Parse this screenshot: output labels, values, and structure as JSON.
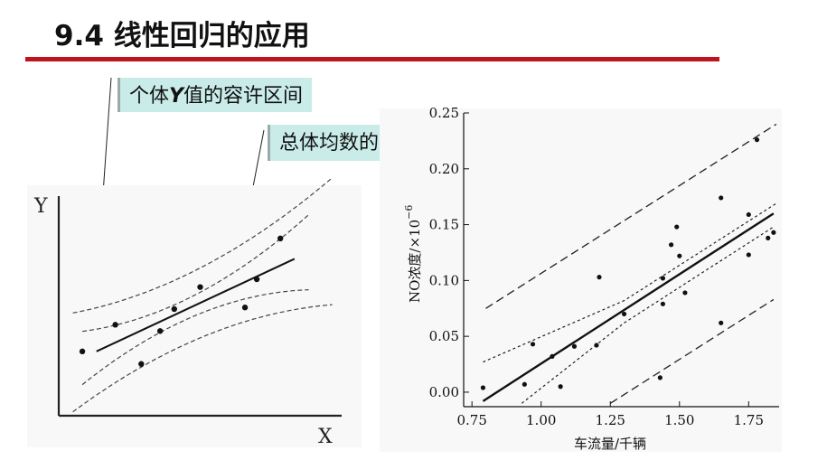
{
  "slide": {
    "title": "9.4 线性回归的应用"
  },
  "callouts": {
    "tolerance": {
      "prefix": "个体",
      "variable": "Y",
      "suffix": "值的容许区间"
    },
    "confidence": {
      "text": "总体均数的置信区间"
    }
  },
  "chart_data": [
    {
      "type": "scatter",
      "title": "",
      "xlabel": "X",
      "ylabel": "Y",
      "schematic": true,
      "points": [
        {
          "x": 0.5,
          "y": 2.05
        },
        {
          "x": 1.2,
          "y": 2.9
        },
        {
          "x": 1.75,
          "y": 1.65
        },
        {
          "x": 2.15,
          "y": 2.7
        },
        {
          "x": 2.45,
          "y": 3.4
        },
        {
          "x": 3.0,
          "y": 4.1
        },
        {
          "x": 3.95,
          "y": 3.45
        },
        {
          "x": 4.2,
          "y": 4.35
        },
        {
          "x": 4.7,
          "y": 5.65
        }
      ],
      "regression_line": {
        "x": [
          0.8,
          5.0
        ],
        "y": [
          2.05,
          5.0
        ]
      },
      "confidence_band_label": "总体均数的置信区间",
      "tolerance_band_label": "个体Y值的容许区间",
      "xlim": [
        0,
        6
      ],
      "ylim": [
        0,
        7
      ]
    },
    {
      "type": "scatter",
      "title": "",
      "xlabel": "车流量/千辆",
      "ylabel": "NO浓度/×10",
      "ylabel_exponent": "−6",
      "xlim": [
        0.72,
        1.86
      ],
      "ylim": [
        -0.013,
        0.25
      ],
      "xticks": [
        "0.75",
        "1.00",
        "1.25",
        "1.50",
        "1.75"
      ],
      "yticks": [
        "0.00",
        "0.05",
        "0.10",
        "0.15",
        "0.20",
        "0.25"
      ],
      "points": [
        {
          "x": 0.79,
          "y": 0.004
        },
        {
          "x": 0.94,
          "y": 0.007
        },
        {
          "x": 0.97,
          "y": 0.043
        },
        {
          "x": 1.04,
          "y": 0.032
        },
        {
          "x": 1.07,
          "y": 0.005
        },
        {
          "x": 1.12,
          "y": 0.041
        },
        {
          "x": 1.2,
          "y": 0.042
        },
        {
          "x": 1.21,
          "y": 0.103
        },
        {
          "x": 1.3,
          "y": 0.07
        },
        {
          "x": 1.43,
          "y": 0.013
        },
        {
          "x": 1.44,
          "y": 0.079
        },
        {
          "x": 1.44,
          "y": 0.102
        },
        {
          "x": 1.47,
          "y": 0.132
        },
        {
          "x": 1.49,
          "y": 0.148
        },
        {
          "x": 1.5,
          "y": 0.122
        },
        {
          "x": 1.52,
          "y": 0.089
        },
        {
          "x": 1.65,
          "y": 0.174
        },
        {
          "x": 1.65,
          "y": 0.062
        },
        {
          "x": 1.75,
          "y": 0.123
        },
        {
          "x": 1.75,
          "y": 0.159
        },
        {
          "x": 1.78,
          "y": 0.226
        },
        {
          "x": 1.82,
          "y": 0.138
        },
        {
          "x": 1.84,
          "y": 0.143
        }
      ],
      "regression_line": {
        "x": [
          0.79,
          1.84
        ],
        "y": [
          -0.008,
          0.16
        ]
      },
      "confidence_band": {
        "upper": {
          "x": [
            0.79,
            1.3,
            1.85
          ],
          "y": [
            0.027,
            0.082,
            0.169
          ]
        },
        "lower": {
          "x": [
            0.93,
            1.3,
            1.84
          ],
          "y": [
            -0.01,
            0.062,
            0.148
          ]
        }
      },
      "tolerance_band": {
        "upper": {
          "x": [
            0.8,
            1.85
          ],
          "y": [
            0.075,
            0.24
          ]
        },
        "lower": {
          "x": [
            1.25,
            1.84
          ],
          "y": [
            -0.01,
            0.083
          ]
        }
      }
    }
  ]
}
